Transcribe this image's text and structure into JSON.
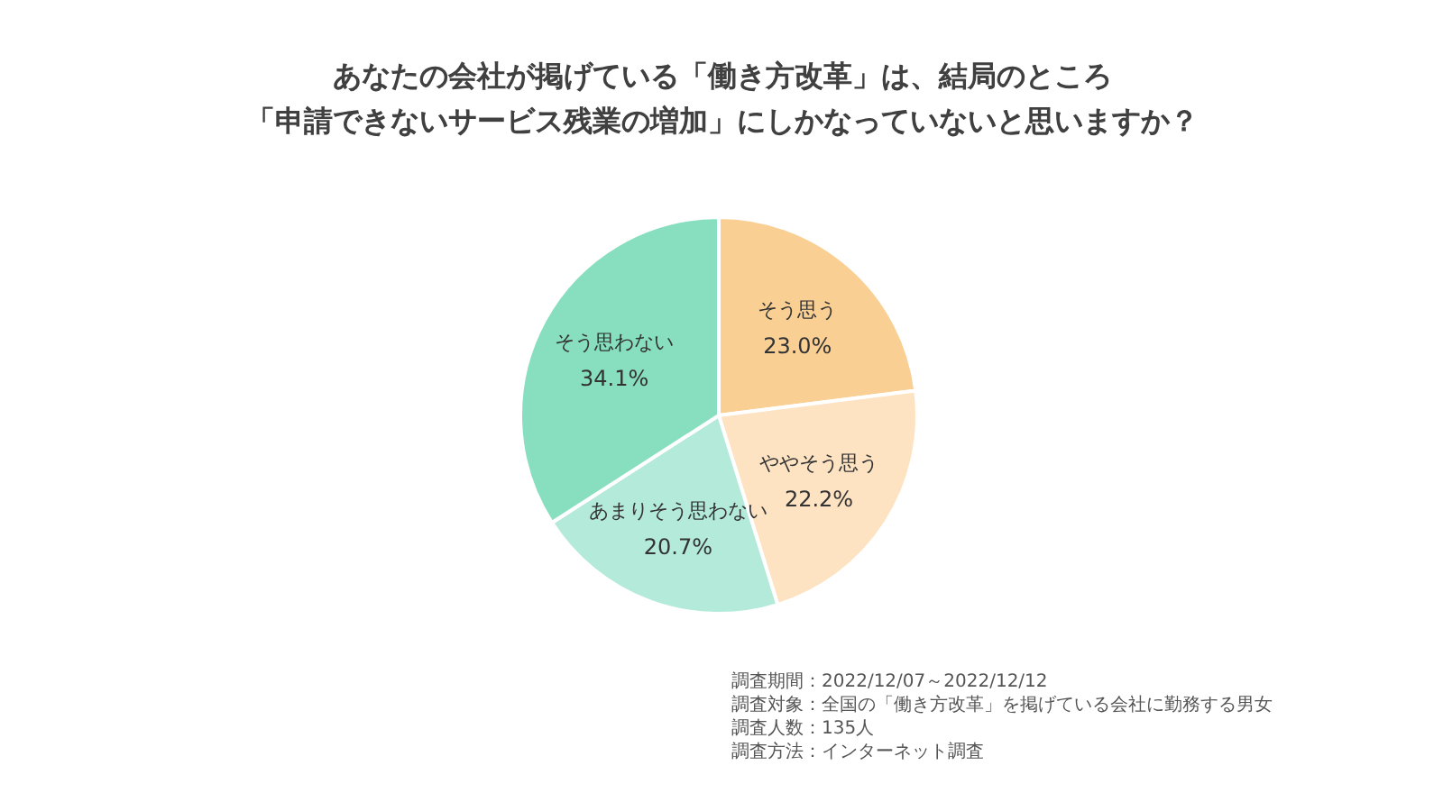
{
  "chart_data": {
    "type": "pie",
    "title": "あなたの会社が掲げている「働き方改革」は、結局のところ",
    "subtitle": "「申請できないサービス残業の増加」にしかなっていないと思いますか？",
    "categories": [
      "そう思う",
      "ややそう思う",
      "あまりそう思わない",
      "そう思わない"
    ],
    "values": [
      23.0,
      22.2,
      20.7,
      34.1
    ],
    "value_labels": [
      "23.0%",
      "22.2%",
      "20.7%",
      "34.1%"
    ],
    "colors": [
      "#f9cf94",
      "#fde3c2",
      "#b3ead9",
      "#87dfc0"
    ],
    "legend": false,
    "annotations": [
      "調査期間：2022/12/07～2022/12/12",
      "調査対象：全国の「働き方改革」を掲げている会社に勤務する男女",
      "調査人数：135人",
      "調査方法：インターネット調査"
    ]
  }
}
